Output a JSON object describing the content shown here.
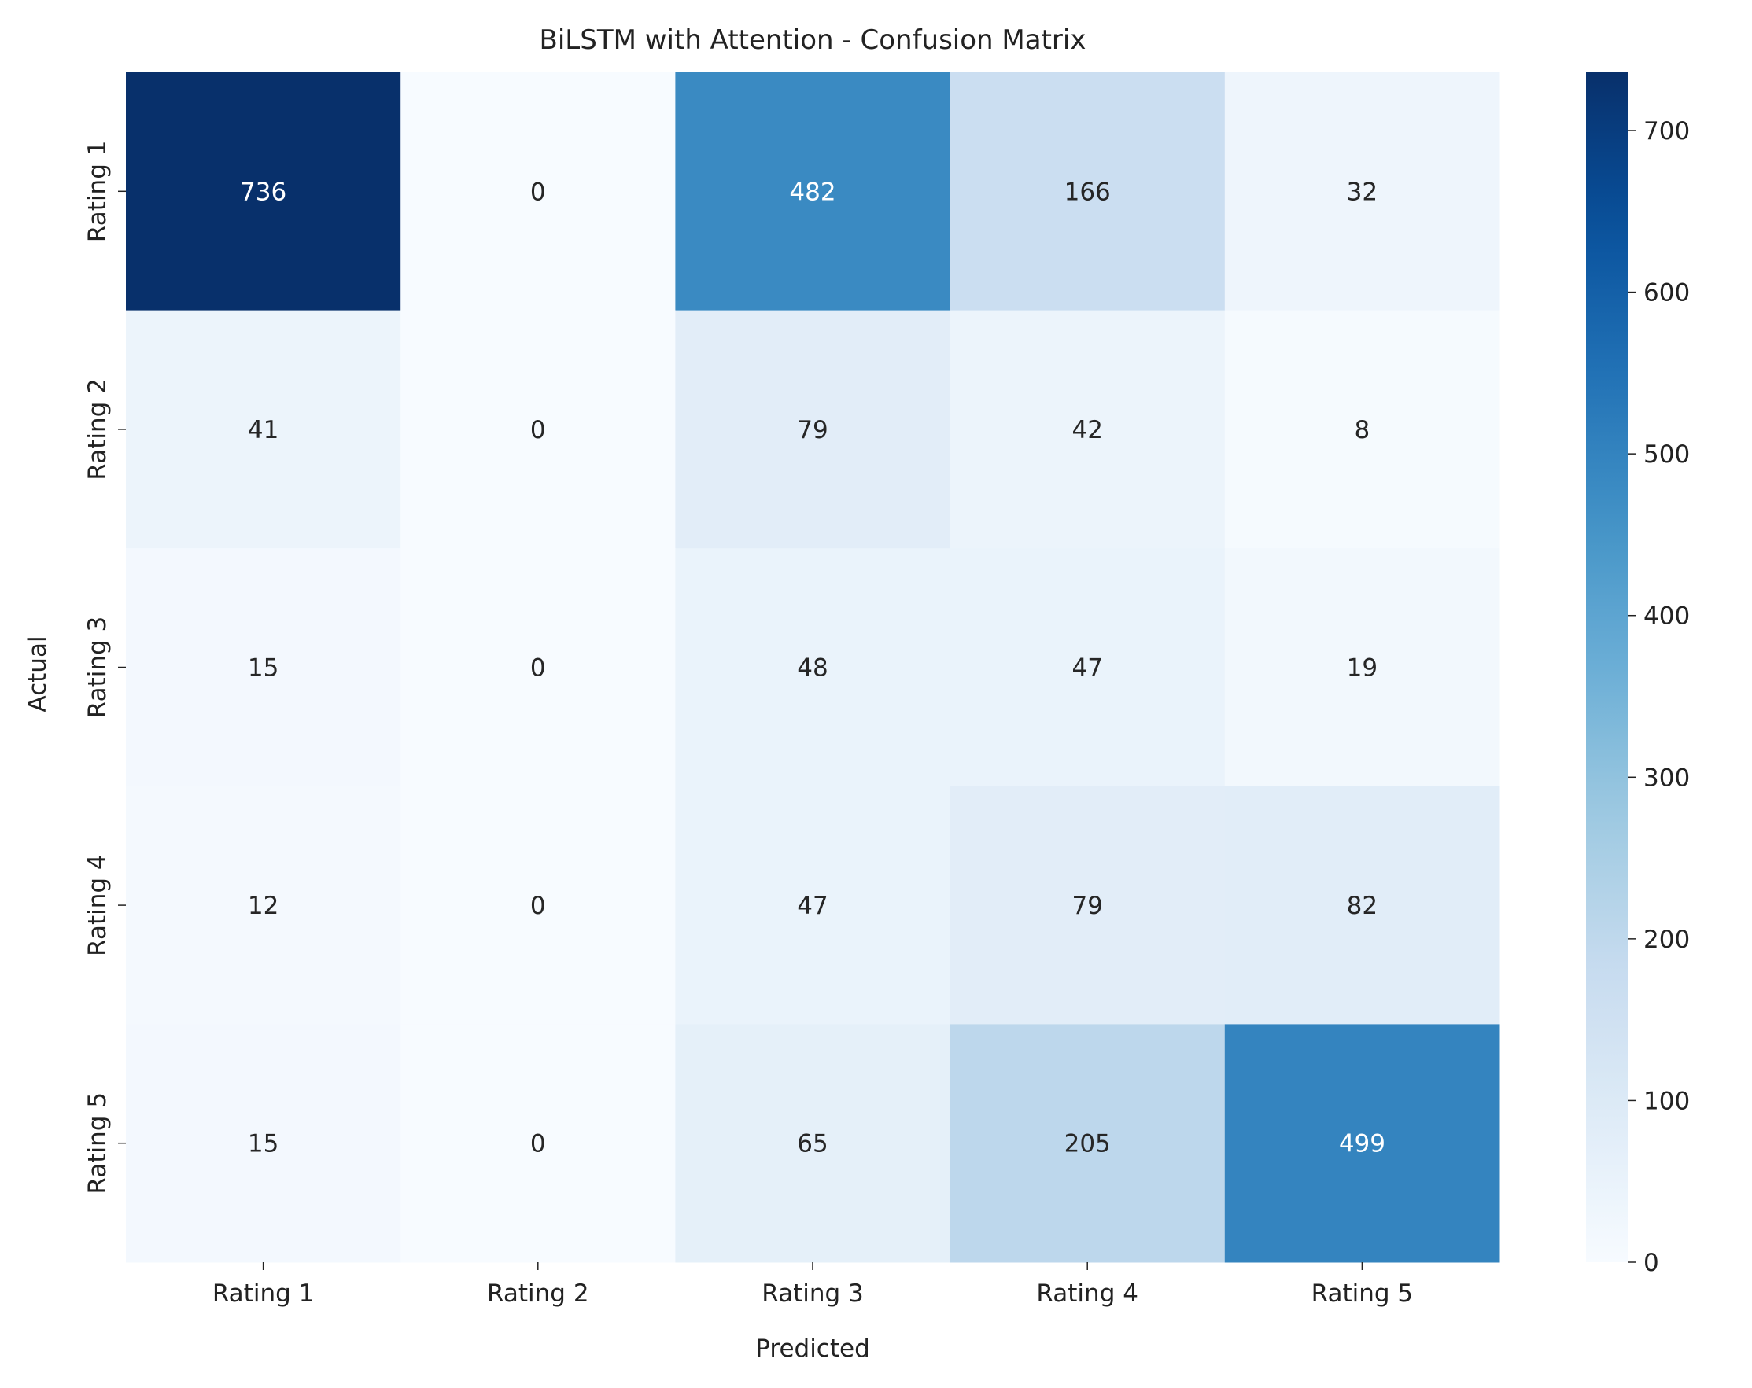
{
  "chart_data": {
    "type": "heatmap",
    "title": "BiLSTM with Attention - Confusion Matrix",
    "xlabel": "Predicted",
    "ylabel": "Actual",
    "x_categories": [
      "Rating 1",
      "Rating 2",
      "Rating 3",
      "Rating 4",
      "Rating 5"
    ],
    "y_categories": [
      "Rating 1",
      "Rating 2",
      "Rating 3",
      "Rating 4",
      "Rating 5"
    ],
    "values": [
      [
        736,
        0,
        482,
        166,
        32
      ],
      [
        41,
        0,
        79,
        42,
        8
      ],
      [
        15,
        0,
        48,
        47,
        19
      ],
      [
        12,
        0,
        47,
        79,
        82
      ],
      [
        15,
        0,
        65,
        205,
        499
      ]
    ],
    "colormap": "Blues",
    "colorbar": {
      "range": [
        0,
        736
      ],
      "ticks": [
        0,
        100,
        200,
        300,
        400,
        500,
        600,
        700
      ]
    },
    "grid": false
  }
}
